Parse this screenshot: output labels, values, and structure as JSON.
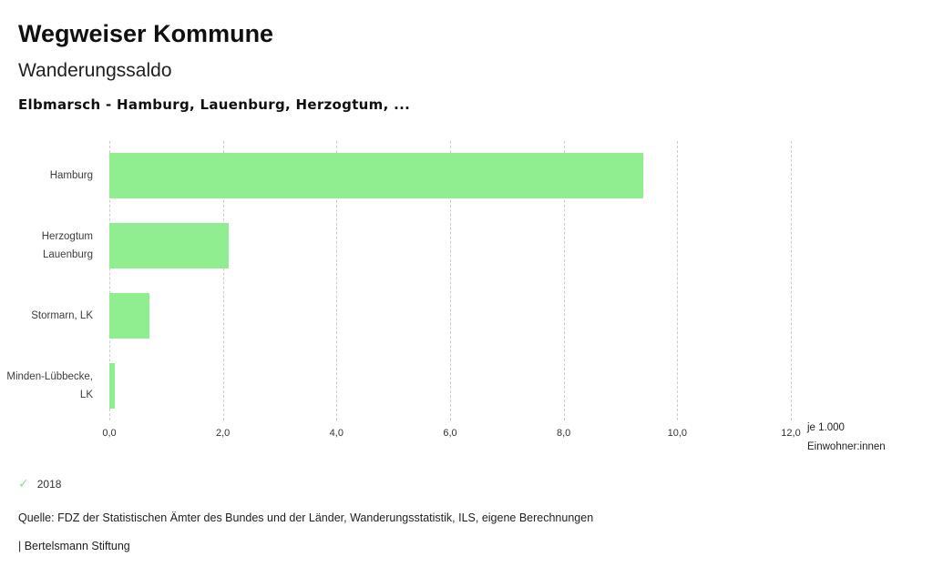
{
  "header": {
    "title": "Wegweiser Kommune",
    "subtitle": "Wanderungssaldo",
    "chart_title": "Elbmarsch - Hamburg, Lauenburg, Herzogtum, ..."
  },
  "chart_data": {
    "type": "bar",
    "orientation": "horizontal",
    "title": "Elbmarsch - Hamburg, Lauenburg, Herzogtum, ...",
    "categories": [
      "Hamburg",
      "Herzogtum Lauenburg",
      "Stormarn, LK",
      "Minden-Lübbecke, LK"
    ],
    "values": [
      9.4,
      2.1,
      0.7,
      0.1
    ],
    "series_name": "2018",
    "xlim": [
      0,
      12
    ],
    "xticks": [
      0,
      2,
      4,
      6,
      8,
      10,
      12
    ],
    "xtick_labels": [
      "0,0",
      "2,0",
      "4,0",
      "6,0",
      "8,0",
      "10,0",
      "12,0"
    ],
    "xlabel": "je 1.000 Einwohner:innen",
    "ylabel": "",
    "grid": true,
    "legend_position": "bottom-left",
    "bar_color": "#90ee90",
    "gridline_color": "#cccccc"
  },
  "unit_label": {
    "line1": "je 1.000",
    "line2": "Einwohner:innen"
  },
  "legend": {
    "check_glyph": "✓",
    "check_color": "#8adf8a",
    "year": "2018"
  },
  "footer": {
    "source": "Quelle: FDZ der Statistischen Ämter des Bundes und der Länder, Wanderungsstatistik, ILS, eigene Berechnungen",
    "brand": "| Bertelsmann Stiftung"
  }
}
